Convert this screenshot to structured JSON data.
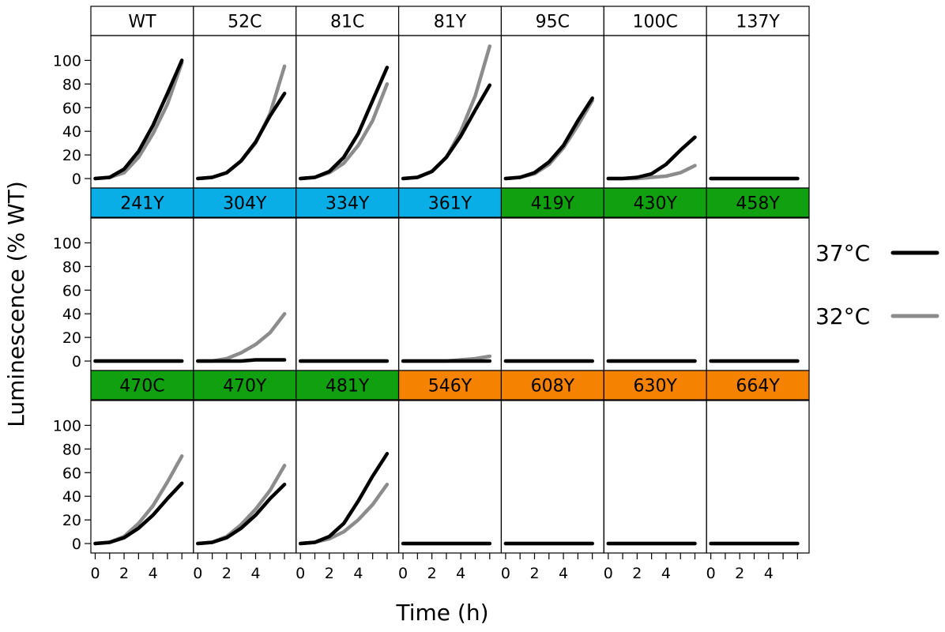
{
  "chart_data": {
    "type": "line",
    "xlabel": "Time (h)",
    "ylabel": "Luminescence (% WT)",
    "x_ticks": [
      0,
      2,
      4
    ],
    "y_ticks": [
      0,
      20,
      40,
      60,
      80,
      100
    ],
    "xlim": [
      -0.3,
      6.8
    ],
    "ylim": [
      -8,
      121
    ],
    "legend": {
      "placement": "right",
      "entries": [
        {
          "label": "37°C",
          "color": "#000000"
        },
        {
          "label": "32°C",
          "color": "#8c8c8c"
        }
      ]
    },
    "x": [
      0,
      1,
      2,
      3,
      4,
      5,
      6
    ],
    "colors": {
      "blue": "#0aaee6",
      "green": "#10a010",
      "orange": "#f58200",
      "white": "#ffffff"
    },
    "panels": [
      {
        "label": "WT",
        "strip": "white",
        "s37": [
          0,
          1,
          8,
          23,
          45,
          72,
          100
        ],
        "s32": [
          0,
          1,
          5,
          18,
          38,
          63,
          98
        ]
      },
      {
        "label": "52C",
        "strip": "white",
        "s37": [
          0,
          1,
          5,
          15,
          31,
          53,
          72
        ],
        "s32": [
          0,
          1,
          5,
          15,
          30,
          55,
          95
        ]
      },
      {
        "label": "81C",
        "strip": "white",
        "s37": [
          0,
          1,
          6,
          18,
          38,
          66,
          94
        ],
        "s32": [
          0,
          1,
          5,
          13,
          28,
          49,
          80
        ]
      },
      {
        "label": "81Y",
        "strip": "white",
        "s37": [
          0,
          1,
          6,
          18,
          36,
          58,
          79
        ],
        "s32": [
          0,
          1,
          6,
          18,
          40,
          70,
          112
        ]
      },
      {
        "label": "95C",
        "strip": "white",
        "s37": [
          0,
          1,
          5,
          14,
          28,
          49,
          68
        ],
        "s32": [
          0,
          1,
          4,
          12,
          26,
          45,
          66
        ]
      },
      {
        "label": "100C",
        "strip": "white",
        "s37": [
          0,
          0,
          1,
          4,
          12,
          24,
          35
        ],
        "s32": [
          0,
          0,
          0,
          1,
          2,
          5,
          11
        ]
      },
      {
        "label": "137Y",
        "strip": "white",
        "s37": [
          0,
          0,
          0,
          0,
          0,
          0,
          0
        ],
        "s32": [
          0,
          0,
          0,
          0,
          0,
          0,
          0
        ]
      },
      {
        "label": "241Y",
        "strip": "blue",
        "s37": [
          0,
          0,
          0,
          0,
          0,
          0,
          0
        ],
        "s32": [
          0,
          0,
          0,
          0,
          0,
          0,
          0
        ]
      },
      {
        "label": "304Y",
        "strip": "blue",
        "s37": [
          0,
          0,
          0,
          0,
          1,
          1,
          1
        ],
        "s32": [
          0,
          0,
          2,
          7,
          14,
          24,
          40
        ]
      },
      {
        "label": "334Y",
        "strip": "blue",
        "s37": [
          0,
          0,
          0,
          0,
          0,
          0,
          0
        ],
        "s32": [
          0,
          0,
          0,
          0,
          0,
          0,
          0
        ]
      },
      {
        "label": "361Y",
        "strip": "blue",
        "s37": [
          0,
          0,
          0,
          0,
          0,
          0,
          0
        ],
        "s32": [
          0,
          0,
          0,
          0,
          1,
          2,
          4
        ]
      },
      {
        "label": "419Y",
        "strip": "green",
        "s37": [
          0,
          0,
          0,
          0,
          0,
          0,
          0
        ],
        "s32": [
          0,
          0,
          0,
          0,
          0,
          0,
          0
        ]
      },
      {
        "label": "430Y",
        "strip": "green",
        "s37": [
          0,
          0,
          0,
          0,
          0,
          0,
          0
        ],
        "s32": [
          0,
          0,
          0,
          0,
          0,
          0,
          0
        ]
      },
      {
        "label": "458Y",
        "strip": "green",
        "s37": [
          0,
          0,
          0,
          0,
          0,
          0,
          0
        ],
        "s32": [
          0,
          0,
          0,
          0,
          0,
          0,
          0
        ]
      },
      {
        "label": "470C",
        "strip": "green",
        "s37": [
          0,
          1,
          5,
          13,
          24,
          38,
          51
        ],
        "s32": [
          0,
          1,
          6,
          17,
          32,
          52,
          74
        ]
      },
      {
        "label": "470Y",
        "strip": "green",
        "s37": [
          0,
          1,
          5,
          13,
          24,
          38,
          50
        ],
        "s32": [
          0,
          1,
          6,
          16,
          29,
          45,
          66
        ]
      },
      {
        "label": "481Y",
        "strip": "green",
        "s37": [
          0,
          1,
          6,
          17,
          36,
          57,
          76
        ],
        "s32": [
          0,
          1,
          4,
          10,
          20,
          33,
          50
        ]
      },
      {
        "label": "546Y",
        "strip": "orange",
        "s37": [
          0,
          0,
          0,
          0,
          0,
          0,
          0
        ],
        "s32": [
          0,
          0,
          0,
          0,
          0,
          0,
          0
        ]
      },
      {
        "label": "608Y",
        "strip": "orange",
        "s37": [
          0,
          0,
          0,
          0,
          0,
          0,
          0
        ],
        "s32": [
          0,
          0,
          0,
          0,
          0,
          0,
          0
        ]
      },
      {
        "label": "630Y",
        "strip": "orange",
        "s37": [
          0,
          0,
          0,
          0,
          0,
          0,
          0
        ],
        "s32": [
          0,
          0,
          0,
          0,
          0,
          0,
          0
        ]
      },
      {
        "label": "664Y",
        "strip": "orange",
        "s37": [
          0,
          0,
          0,
          0,
          0,
          0,
          0
        ],
        "s32": [
          0,
          0,
          0,
          0,
          0,
          0,
          0
        ]
      }
    ]
  }
}
